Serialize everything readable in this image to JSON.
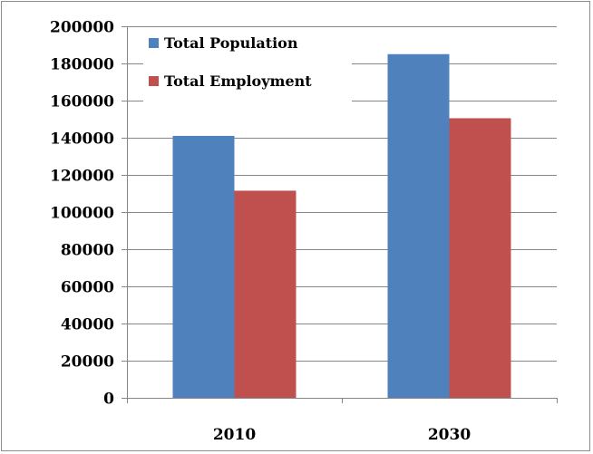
{
  "chart_data": {
    "type": "bar",
    "title": "",
    "xlabel": "",
    "ylabel": "",
    "categories": [
      "2010",
      "2030"
    ],
    "series": [
      {
        "name": "Total Population",
        "color": "#4f81bd",
        "values": [
          141000,
          185000
        ]
      },
      {
        "name": "Total Employment",
        "color": "#c0504d",
        "values": [
          111500,
          150500
        ]
      }
    ],
    "ylim": [
      0,
      200000
    ],
    "yticks": [
      "0",
      "20000",
      "40000",
      "60000",
      "80000",
      "100000",
      "120000",
      "140000",
      "160000",
      "180000",
      "200000"
    ],
    "grid": true,
    "legend_position": "top-left"
  }
}
